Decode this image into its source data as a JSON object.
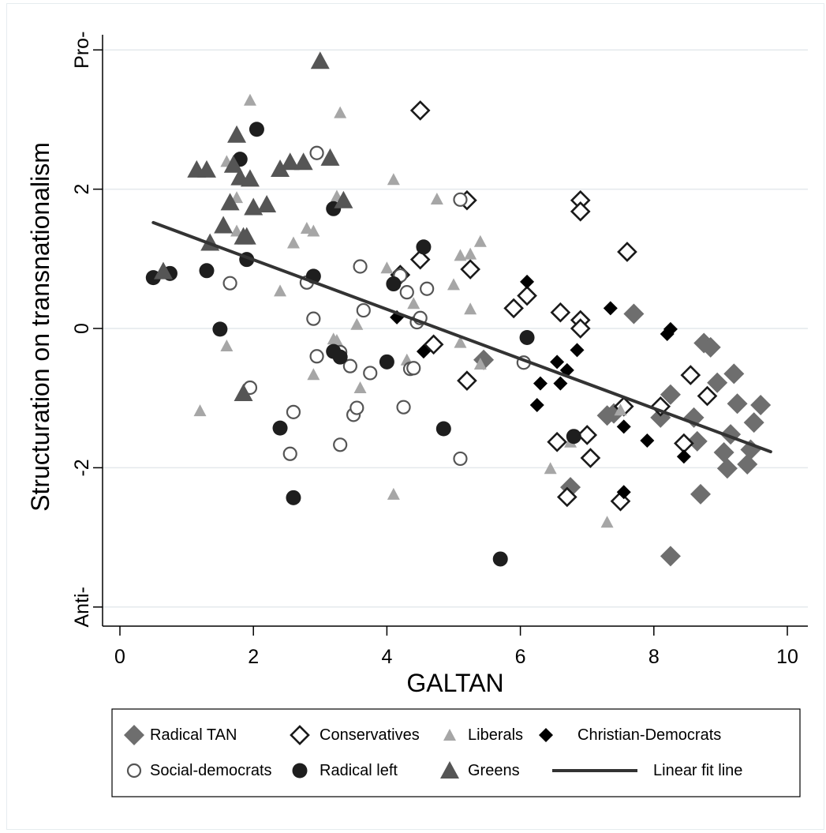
{
  "chart_data": {
    "type": "scatter",
    "xlabel": "GALTAN",
    "ylabel": "Structuration on transnationalism",
    "xlim": [
      0,
      10
    ],
    "ylim": [
      -4,
      4
    ],
    "x_ticks": [
      0,
      2,
      4,
      6,
      8,
      10
    ],
    "y_ticks": [
      {
        "value": 4,
        "label": "Pro-"
      },
      {
        "value": 2,
        "label": "2"
      },
      {
        "value": 0,
        "label": "0"
      },
      {
        "value": -2,
        "label": "-2"
      },
      {
        "value": -4,
        "label": "Anti-"
      }
    ],
    "grid": true,
    "legend_position": "bottom",
    "fit_line": {
      "name": "Linear fit line",
      "x": [
        0.5,
        9.75
      ],
      "y": [
        1.52,
        -1.77
      ]
    },
    "series": [
      {
        "name": "Radical TAN",
        "marker": "diamond-filled",
        "color": "#6e6e6e",
        "x": [
          5.45,
          7.7,
          6.75,
          7.3,
          7.4,
          8.1,
          8.25,
          8.6,
          8.65,
          8.7,
          8.75,
          8.85,
          8.95,
          9.05,
          9.1,
          9.15,
          9.2,
          9.25,
          9.4,
          9.45,
          9.5,
          9.6,
          8.25
        ],
        "y": [
          -0.45,
          0.21,
          -2.28,
          -1.25,
          -1.22,
          -1.28,
          -0.95,
          -1.28,
          -1.62,
          -2.38,
          -0.21,
          -0.27,
          -0.78,
          -1.78,
          -2.01,
          -1.52,
          -0.65,
          -1.08,
          -1.95,
          -1.74,
          -1.35,
          -1.1,
          -3.27
        ]
      },
      {
        "name": "Conservatives",
        "marker": "diamond-open",
        "color": "#1a1a1a",
        "x": [
          4.5,
          5.2,
          4.5,
          5.25,
          6.1,
          4.2,
          5.2,
          5.9,
          6.6,
          6.9,
          6.9,
          6.9,
          6.9,
          7.6,
          7.55,
          8.1,
          8.55,
          8.45,
          8.8,
          6.55,
          6.7,
          7.0,
          7.05,
          7.5,
          4.7
        ],
        "y": [
          3.13,
          1.84,
          0.99,
          0.85,
          0.47,
          0.77,
          -0.75,
          0.29,
          0.23,
          1.84,
          1.68,
          0.12,
          0.0,
          1.1,
          -1.12,
          -1.12,
          -0.67,
          -1.65,
          -0.97,
          -1.63,
          -2.42,
          -1.53,
          -1.86,
          -2.48,
          -0.23
        ]
      },
      {
        "name": "Liberals",
        "marker": "triangle-small",
        "color": "#a6a6a6",
        "x": [
          1.2,
          1.6,
          1.95,
          1.6,
          1.75,
          2.4,
          2.6,
          2.8,
          2.9,
          2.9,
          3.2,
          3.25,
          3.3,
          3.55,
          3.6,
          4.0,
          4.1,
          4.1,
          4.4,
          4.75,
          5.0,
          5.1,
          5.1,
          5.25,
          5.25,
          5.4,
          5.4,
          6.75,
          7.3,
          7.5,
          1.75,
          1.7,
          3.25,
          6.45,
          4.3
        ],
        "y": [
          -1.18,
          -0.25,
          3.28,
          2.4,
          1.88,
          0.54,
          1.23,
          1.44,
          1.4,
          -0.66,
          -0.15,
          1.9,
          3.1,
          0.06,
          -0.85,
          0.87,
          2.14,
          -2.38,
          0.36,
          1.86,
          0.63,
          1.05,
          -0.2,
          1.07,
          0.28,
          1.25,
          -0.51,
          -1.63,
          -2.78,
          -1.17,
          1.4,
          2.4,
          -0.17,
          -2.01,
          -0.45
        ]
      },
      {
        "name": "Christian-Democrats",
        "marker": "diamond-small",
        "color": "#000000",
        "x": [
          6.1,
          7.35,
          4.15,
          4.55,
          6.3,
          6.25,
          6.55,
          6.6,
          6.7,
          6.85,
          7.55,
          7.9,
          8.2,
          8.25,
          8.45,
          7.55
        ],
        "y": [
          0.67,
          0.29,
          0.16,
          -0.33,
          -0.79,
          -1.1,
          -0.48,
          -0.79,
          -0.6,
          -0.31,
          -1.41,
          -1.61,
          -0.08,
          -0.01,
          -1.84,
          -2.35
        ]
      },
      {
        "name": "Social-democrats",
        "marker": "circle-open",
        "color": "#555555",
        "x": [
          1.65,
          2.95,
          1.95,
          2.55,
          2.6,
          2.8,
          2.9,
          2.95,
          3.3,
          3.45,
          3.5,
          3.55,
          3.6,
          3.65,
          3.75,
          4.2,
          4.25,
          4.3,
          4.35,
          4.4,
          4.45,
          4.5,
          4.6,
          5.1,
          5.1,
          3.3,
          6.05
        ],
        "y": [
          0.65,
          2.52,
          -0.85,
          -1.8,
          -1.2,
          0.66,
          0.14,
          -0.4,
          -1.67,
          -0.54,
          -1.24,
          -1.14,
          0.89,
          0.26,
          -0.64,
          0.76,
          -1.13,
          0.52,
          -0.58,
          -0.57,
          0.09,
          0.15,
          0.57,
          -1.87,
          1.85,
          -0.34,
          -0.49
        ]
      },
      {
        "name": "Radical left",
        "marker": "circle-filled",
        "color": "#1e1e1e",
        "x": [
          0.5,
          0.75,
          1.3,
          1.5,
          1.8,
          1.9,
          2.05,
          2.4,
          2.6,
          2.9,
          3.2,
          3.2,
          3.3,
          4.0,
          4.1,
          4.55,
          4.85,
          5.7,
          6.1,
          6.8
        ],
        "y": [
          0.73,
          0.79,
          0.83,
          -0.01,
          2.43,
          0.99,
          2.86,
          -1.43,
          -2.43,
          0.75,
          1.72,
          -0.33,
          -0.41,
          -0.48,
          0.64,
          1.17,
          -1.44,
          -3.31,
          -0.13,
          -1.55
        ]
      },
      {
        "name": "Greens",
        "marker": "triangle-filled",
        "color": "#555555",
        "x": [
          0.65,
          1.15,
          1.3,
          1.35,
          1.55,
          1.65,
          1.7,
          1.75,
          1.8,
          1.85,
          1.9,
          1.95,
          2.0,
          2.2,
          2.4,
          2.55,
          2.75,
          3.0,
          3.15,
          3.35,
          1.85
        ],
        "y": [
          0.82,
          2.28,
          2.28,
          1.23,
          1.48,
          1.81,
          2.35,
          2.78,
          2.17,
          1.32,
          1.32,
          2.15,
          1.74,
          1.78,
          2.29,
          2.39,
          2.39,
          3.84,
          2.45,
          1.84,
          -0.93
        ]
      }
    ]
  },
  "legend": {
    "rows": [
      [
        {
          "series": "Radical TAN",
          "label": "Radical TAN"
        },
        {
          "series": "Conservatives",
          "label": "Conservatives"
        },
        {
          "series": "Liberals",
          "label": "Liberals"
        },
        {
          "series": "Christian-Democrats",
          "label": "Christian-Democrats"
        }
      ],
      [
        {
          "series": "Social-democrats",
          "label": "Social-democrats"
        },
        {
          "series": "Radical left",
          "label": "Radical left"
        },
        {
          "series": "Greens",
          "label": "Greens"
        },
        {
          "series": "fit",
          "label": "Linear fit line"
        }
      ]
    ]
  }
}
